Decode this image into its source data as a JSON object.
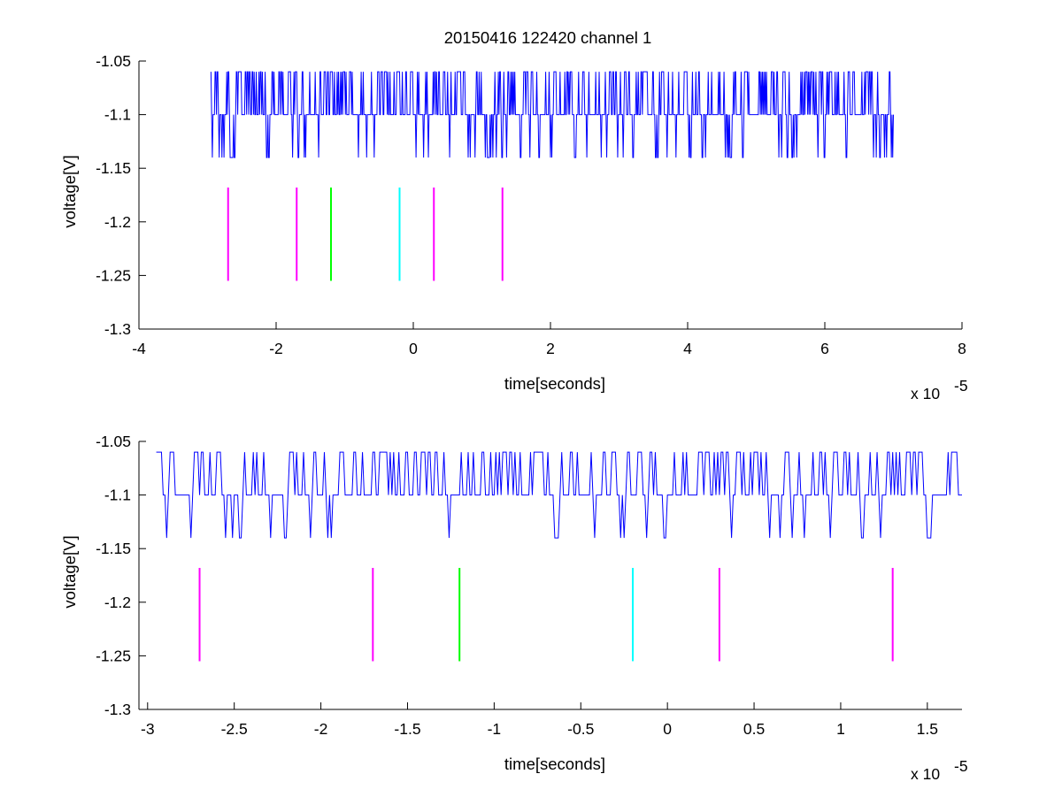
{
  "figure": {
    "title": "20150416 122420 channel 1"
  },
  "colors": {
    "signal": "#0000ff",
    "magenta": "#ff00ff",
    "green": "#00ff00",
    "cyan": "#00ffff",
    "axes": "#000000"
  },
  "chart_data": [
    {
      "type": "line",
      "title": "20150416 122420 channel 1",
      "xlabel": "time[seconds]",
      "ylabel": "voltage[V]",
      "x_multiplier": "x 10",
      "x_multiplier_exponent": "-5",
      "xlim": [
        -4,
        8
      ],
      "ylim": [
        -1.3,
        -1.05
      ],
      "x_ticks": [
        -4,
        -2,
        0,
        2,
        4,
        6,
        8
      ],
      "x_tick_labels": [
        "-4",
        "-2",
        "0",
        "2",
        "4",
        "6",
        "8"
      ],
      "y_ticks": [
        -1.05,
        -1.1,
        -1.15,
        -1.2,
        -1.25,
        -1.3
      ],
      "y_tick_labels": [
        "-1.05",
        "-1.1",
        "-1.15",
        "-1.2",
        "-1.25",
        "-1.3"
      ],
      "grid": false,
      "legend": "none",
      "series": [
        {
          "color": "signal",
          "x_range": [
            -2.95,
            7.0
          ],
          "levels": [
            -1.06,
            -1.1,
            -1.14
          ],
          "step": 0.01,
          "seed": 11
        }
      ],
      "markers": [
        {
          "x": -2.7,
          "y_range": [
            -1.255,
            -1.168
          ],
          "color": "magenta"
        },
        {
          "x": -1.7,
          "y_range": [
            -1.255,
            -1.168
          ],
          "color": "magenta"
        },
        {
          "x": -1.2,
          "y_range": [
            -1.255,
            -1.168
          ],
          "color": "green"
        },
        {
          "x": -0.2,
          "y_range": [
            -1.255,
            -1.168
          ],
          "color": "cyan"
        },
        {
          "x": 0.3,
          "y_range": [
            -1.255,
            -1.168
          ],
          "color": "magenta"
        },
        {
          "x": 1.3,
          "y_range": [
            -1.255,
            -1.168
          ],
          "color": "magenta"
        }
      ]
    },
    {
      "type": "line",
      "xlabel": "time[seconds]",
      "ylabel": "voltage[V]",
      "x_multiplier": "x 10",
      "x_multiplier_exponent": "-5",
      "xlim": [
        -3.05,
        1.7
      ],
      "ylim": [
        -1.3,
        -1.05
      ],
      "x_ticks": [
        -3,
        -2.5,
        -2,
        -1.5,
        -1,
        -0.5,
        0,
        0.5,
        1,
        1.5
      ],
      "x_tick_labels": [
        "-3",
        "-2.5",
        "-2",
        "-1.5",
        "-1",
        "-0.5",
        "0",
        "0.5",
        "1",
        "1.5"
      ],
      "y_ticks": [
        -1.05,
        -1.1,
        -1.15,
        -1.2,
        -1.25,
        -1.3
      ],
      "y_tick_labels": [
        "-1.05",
        "-1.1",
        "-1.15",
        "-1.2",
        "-1.25",
        "-1.3"
      ],
      "grid": false,
      "legend": "none",
      "series": [
        {
          "color": "signal",
          "x_range": [
            -2.95,
            1.7
          ],
          "levels": [
            -1.06,
            -1.1,
            -1.14
          ],
          "step": 0.01,
          "seed": 7
        }
      ],
      "markers": [
        {
          "x": -2.7,
          "y_range": [
            -1.255,
            -1.168
          ],
          "color": "magenta"
        },
        {
          "x": -1.7,
          "y_range": [
            -1.255,
            -1.168
          ],
          "color": "magenta"
        },
        {
          "x": -1.2,
          "y_range": [
            -1.255,
            -1.168
          ],
          "color": "green"
        },
        {
          "x": -0.2,
          "y_range": [
            -1.255,
            -1.168
          ],
          "color": "cyan"
        },
        {
          "x": 0.3,
          "y_range": [
            -1.255,
            -1.168
          ],
          "color": "magenta"
        },
        {
          "x": 1.3,
          "y_range": [
            -1.255,
            -1.168
          ],
          "color": "magenta"
        }
      ]
    }
  ]
}
